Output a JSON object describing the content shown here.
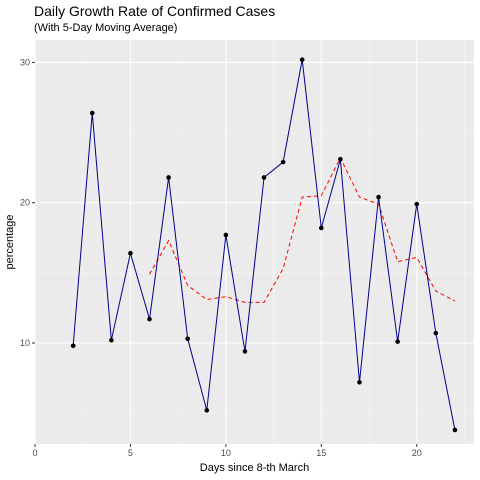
{
  "chart_data": {
    "type": "line",
    "title": "Daily Growth Rate of Confirmed Cases",
    "subtitle": "(With 5-Day Moving Average)",
    "xlabel": "Days since 8-th March",
    "ylabel": "percentage",
    "xlim": [
      0,
      23
    ],
    "ylim": [
      2.8,
      31.6
    ],
    "x_ticks": [
      0,
      5,
      10,
      15,
      20
    ],
    "y_ticks": [
      10,
      20,
      30
    ],
    "grid": true,
    "legend": "none",
    "series": [
      {
        "style": "solid line with points",
        "color": "#00008B",
        "x": [
          2,
          3,
          4,
          5,
          6,
          7,
          8,
          9,
          10,
          11,
          12,
          13,
          14,
          15,
          16,
          17,
          18,
          19,
          20,
          21,
          22
        ],
        "y": [
          9.8,
          26.4,
          10.2,
          16.4,
          11.7,
          21.8,
          10.3,
          5.2,
          17.7,
          9.4,
          21.8,
          22.9,
          30.2,
          18.2,
          23.1,
          7.2,
          20.4,
          10.1,
          19.9,
          10.7,
          3.8
        ]
      },
      {
        "style": "dashed line",
        "color": "#FF0000",
        "x": [
          6,
          7,
          8,
          9,
          10,
          11,
          12,
          13,
          14,
          15,
          16,
          17,
          18,
          19,
          20,
          21,
          22
        ],
        "y": [
          14.9,
          17.3,
          14.1,
          13.1,
          13.3,
          12.9,
          12.9,
          15.3,
          20.4,
          20.5,
          23.2,
          20.4,
          19.9,
          15.8,
          16.1,
          13.7,
          13.0
        ]
      }
    ]
  }
}
